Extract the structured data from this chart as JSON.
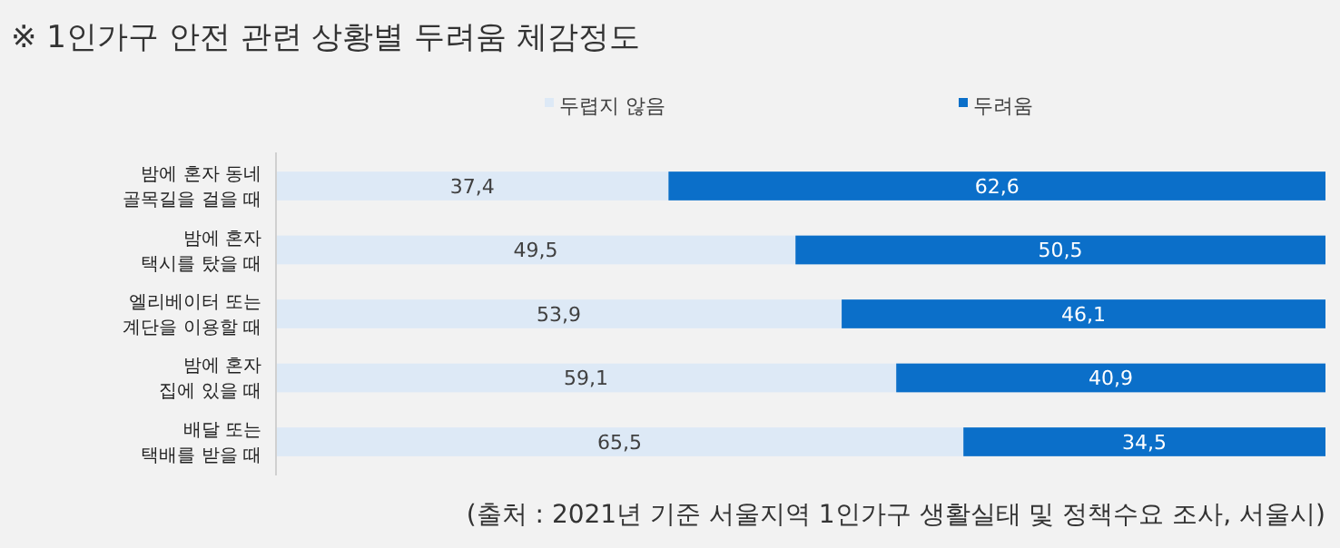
{
  "chart_data": {
    "type": "bar",
    "orientation": "horizontal",
    "stacked": true,
    "title": "※ 1인가구 안전 관련 상황별 두려움 체감정도",
    "categories": [
      "밤에 혼자 동네\n골목길을 걸을 때",
      "밤에 혼자\n택시를 탔을 때",
      "엘리베이터 또는\n계단을 이용할 때",
      "밤에 혼자\n집에 있을 때",
      "배달 또는\n택배를 받을 때"
    ],
    "series": [
      {
        "name": "두렵지 않음",
        "color": "#dde9f6",
        "values": [
          37.4,
          49.5,
          53.9,
          59.1,
          65.5
        ],
        "value_labels": [
          "37,4",
          "49,5",
          "53,9",
          "59,1",
          "65,5"
        ]
      },
      {
        "name": "두려움",
        "color": "#0b6fc9",
        "values": [
          62.6,
          50.5,
          46.1,
          40.9,
          34.5
        ],
        "value_labels": [
          "62,6",
          "50,5",
          "46,1",
          "40,9",
          "34,5"
        ]
      }
    ],
    "legend": "top",
    "annotations": [
      "(출처 : 2021년 기준 서울지역 1인가구 생활실태 및 정책수요 조사, 서울시)"
    ]
  }
}
